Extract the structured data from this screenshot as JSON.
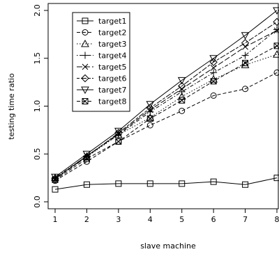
{
  "chart_data": {
    "type": "line",
    "title": "",
    "xlabel": "slave machine",
    "ylabel": "testing time ratio",
    "x": [
      1,
      2,
      3,
      4,
      5,
      6,
      7,
      8
    ],
    "xlim": [
      1,
      8
    ],
    "ylim": [
      0,
      2.0
    ],
    "x_ticks": [
      "1",
      "2",
      "3",
      "4",
      "5",
      "6",
      "7",
      "8"
    ],
    "y_ticks": [
      "0.0",
      "0.5",
      "1.0",
      "1.5",
      "2.0"
    ],
    "grid": false,
    "legend_position": "top-left",
    "series": [
      {
        "name": "target1",
        "marker": "square",
        "dash": "solid",
        "values": [
          0.13,
          0.18,
          0.19,
          0.19,
          0.19,
          0.21,
          0.18,
          0.25
        ]
      },
      {
        "name": "target2",
        "marker": "circle",
        "dash": "dashed",
        "values": [
          0.22,
          0.42,
          0.63,
          0.8,
          0.95,
          1.11,
          1.18,
          1.35
        ]
      },
      {
        "name": "target3",
        "marker": "triangle-up",
        "dash": "dotted",
        "values": [
          0.25,
          0.47,
          0.7,
          0.88,
          1.1,
          1.28,
          1.43,
          1.54
        ]
      },
      {
        "name": "target4",
        "marker": "plus",
        "dash": "dotdash",
        "values": [
          0.25,
          0.48,
          0.7,
          0.94,
          1.15,
          1.35,
          1.53,
          1.8
        ]
      },
      {
        "name": "target5",
        "marker": "cross",
        "dash": "longdash",
        "values": [
          0.24,
          0.48,
          0.71,
          0.96,
          1.18,
          1.4,
          1.62,
          1.79
        ]
      },
      {
        "name": "target6",
        "marker": "diamond",
        "dash": "twodash",
        "values": [
          0.24,
          0.47,
          0.72,
          0.98,
          1.21,
          1.46,
          1.66,
          1.88
        ]
      },
      {
        "name": "target7",
        "marker": "triangle-down",
        "dash": "solid",
        "values": [
          0.26,
          0.5,
          0.74,
          1.02,
          1.27,
          1.5,
          1.74,
          2.0
        ]
      },
      {
        "name": "target8",
        "marker": "square-cross",
        "dash": "dashed",
        "values": [
          0.23,
          0.45,
          0.63,
          0.87,
          1.06,
          1.26,
          1.45,
          1.63
        ]
      }
    ]
  }
}
